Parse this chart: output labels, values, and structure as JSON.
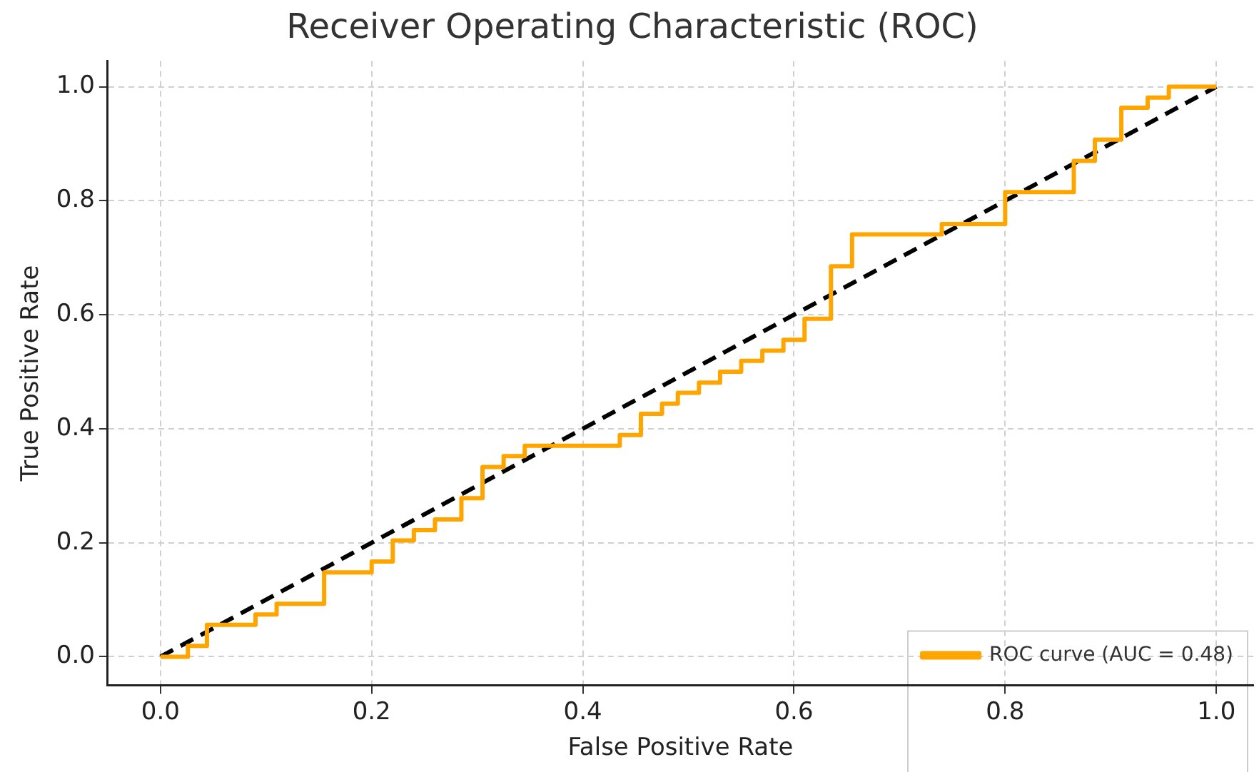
{
  "chart_data": {
    "type": "step",
    "title": "Receiver Operating Characteristic (ROC)",
    "xlabel": "False Positive Rate",
    "ylabel": "True Positive Rate",
    "xlim": [
      -0.05,
      1.035
    ],
    "ylim": [
      -0.05,
      1.045
    ],
    "xticks": [
      {
        "value": 0,
        "label": "0.0"
      },
      {
        "value": 0.2,
        "label": "0.2"
      },
      {
        "value": 0.4,
        "label": "0.4"
      },
      {
        "value": 0.6,
        "label": "0.6"
      },
      {
        "value": 0.8,
        "label": "0.8"
      },
      {
        "value": 1,
        "label": "1.0"
      }
    ],
    "yticks": [
      {
        "value": 0,
        "label": "0.0"
      },
      {
        "value": 0.2,
        "label": "0.2"
      },
      {
        "value": 0.4,
        "label": "0.4"
      },
      {
        "value": 0.6,
        "label": "0.6"
      },
      {
        "value": 0.8,
        "label": "0.8"
      },
      {
        "value": 1,
        "label": "1.0"
      }
    ],
    "grid": true,
    "legend": "bottom right",
    "series": [
      {
        "name": "ROC curve (AUC = 0.48)",
        "color": "#ffa500",
        "x": [
          0,
          0.026,
          0.044,
          0.09,
          0.11,
          0.155,
          0.2,
          0.22,
          0.24,
          0.26,
          0.285,
          0.305,
          0.325,
          0.345,
          0.435,
          0.455,
          0.475,
          0.49,
          0.51,
          0.53,
          0.55,
          0.57,
          0.59,
          0.61,
          0.635,
          0.655,
          0.74,
          0.8,
          0.865,
          0.885,
          0.91,
          0.935,
          0.955,
          1
        ],
        "values": [
          0,
          0.019,
          0.056,
          0.074,
          0.093,
          0.148,
          0.167,
          0.204,
          0.222,
          0.241,
          0.278,
          0.333,
          0.352,
          0.37,
          0.389,
          0.426,
          0.444,
          0.463,
          0.481,
          0.5,
          0.519,
          0.537,
          0.556,
          0.593,
          0.685,
          0.741,
          0.759,
          0.815,
          0.87,
          0.907,
          0.963,
          0.981,
          1,
          1
        ]
      },
      {
        "type": "line",
        "color": "#000000",
        "line_style": "dashed",
        "x": [
          0,
          1
        ],
        "values": [
          0,
          1
        ]
      }
    ]
  }
}
